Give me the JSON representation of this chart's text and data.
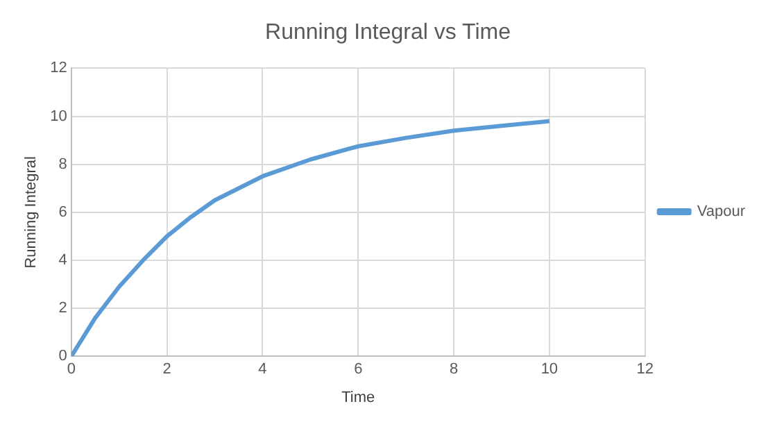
{
  "chart_data": {
    "type": "line",
    "title": "Running Integral vs Time",
    "xlabel": "Time",
    "ylabel": "Running Integral",
    "x": [
      0,
      0.5,
      1,
      1.5,
      2,
      2.5,
      3,
      3.5,
      4,
      5,
      6,
      7,
      8,
      9,
      10
    ],
    "series": [
      {
        "name": "Vapour",
        "color": "#5b9bd5",
        "values": [
          0,
          1.6,
          2.9,
          4.0,
          5.0,
          5.8,
          6.5,
          7.0,
          7.5,
          8.2,
          8.75,
          9.1,
          9.4,
          9.6,
          9.8
        ]
      }
    ],
    "xlim": [
      0,
      12
    ],
    "xticks": [
      0,
      2,
      4,
      6,
      8,
      10,
      12
    ],
    "ylim": [
      0,
      12
    ],
    "yticks": [
      0,
      2,
      4,
      6,
      8,
      10,
      12
    ],
    "grid": true,
    "legend": "right",
    "marker": "none",
    "line_style": "solid"
  }
}
